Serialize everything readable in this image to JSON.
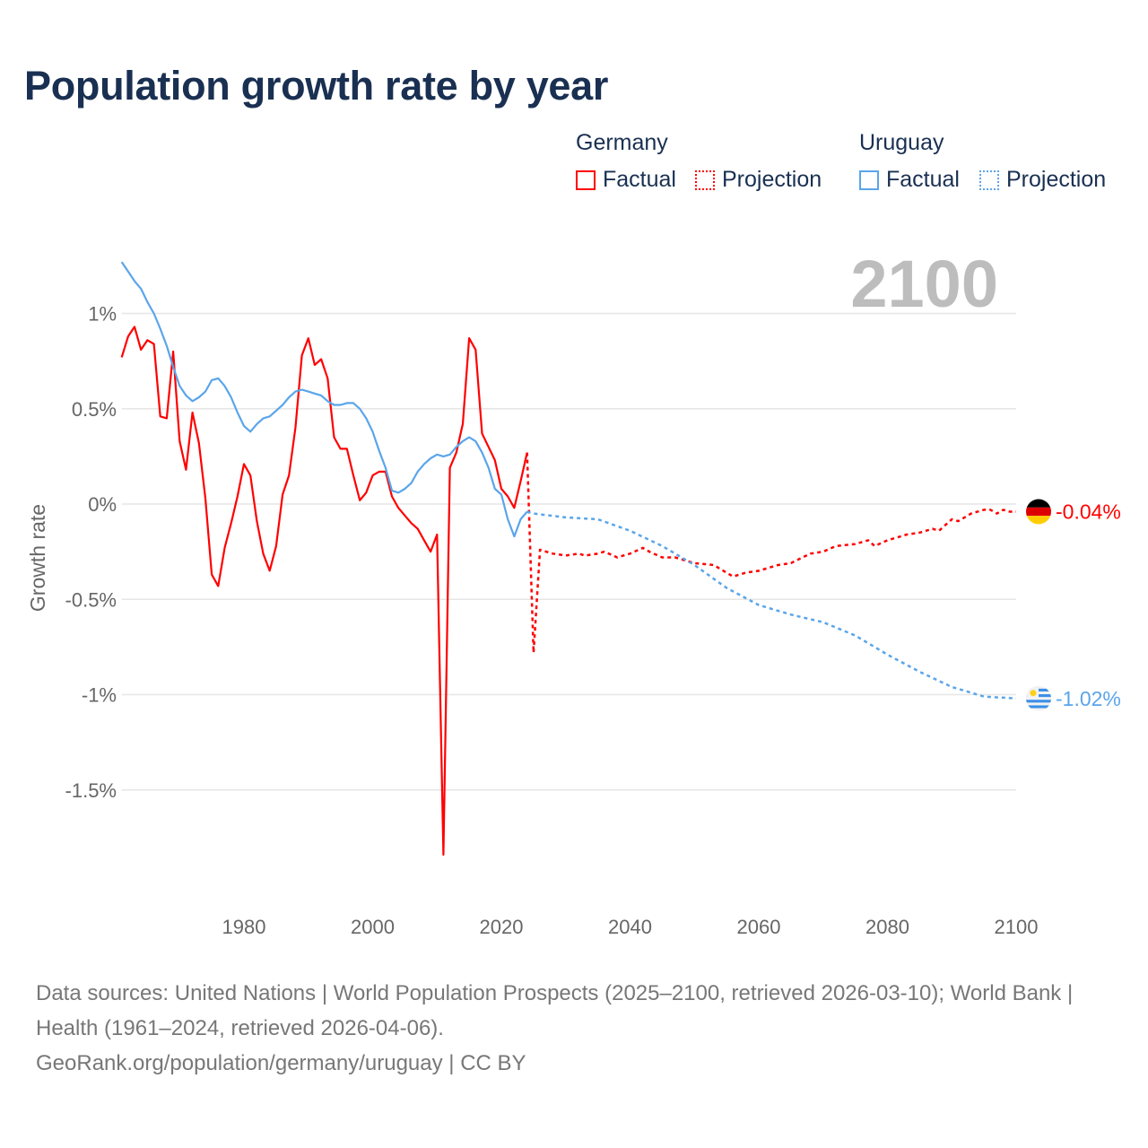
{
  "title": "Population growth rate by year",
  "legend": {
    "groups": [
      {
        "name": "Germany",
        "color": "#ff0000",
        "factual": "Factual",
        "projection": "Projection"
      },
      {
        "name": "Uruguay",
        "color": "#5aa5ea",
        "factual": "Factual",
        "projection": "Projection"
      }
    ]
  },
  "chart_data": {
    "type": "line",
    "title": "Population growth rate by year",
    "ylabel": "Growth rate",
    "xlabel": "",
    "xlim": [
      1961,
      2100
    ],
    "ylim": [
      -2.0,
      1.3
    ],
    "x_ticks": [
      1980,
      2000,
      2020,
      2040,
      2060,
      2080,
      2100
    ],
    "y_ticks": [
      {
        "value": 1,
        "label": "1%"
      },
      {
        "value": 0.5,
        "label": "0.5%"
      },
      {
        "value": 0,
        "label": "0%"
      },
      {
        "value": -0.5,
        "label": "-0.5%"
      },
      {
        "value": -1,
        "label": "-1%"
      },
      {
        "value": -1.5,
        "label": "-1.5%"
      }
    ],
    "grid": true,
    "year_label": "2100",
    "series": [
      {
        "name": "Germany Factual",
        "color": "#ff0000",
        "style": "solid",
        "start_year": 1961,
        "values": [
          0.77,
          0.88,
          0.93,
          0.81,
          0.86,
          0.84,
          0.46,
          0.45,
          0.8,
          0.33,
          0.18,
          0.48,
          0.32,
          0.03,
          -0.37,
          -0.43,
          -0.23,
          -0.1,
          0.04,
          0.21,
          0.15,
          -0.09,
          -0.26,
          -0.35,
          -0.22,
          0.05,
          0.15,
          0.4,
          0.78,
          0.87,
          0.73,
          0.76,
          0.66,
          0.35,
          0.29,
          0.29,
          0.15,
          0.02,
          0.06,
          0.15,
          0.17,
          0.17,
          0.04,
          -0.02,
          -0.06,
          -0.1,
          -0.13,
          -0.19,
          -0.25,
          -0.16,
          -1.84,
          0.19,
          0.27,
          0.42,
          0.87,
          0.81,
          0.37,
          0.3,
          0.23,
          0.08,
          0.04,
          -0.02,
          0.12,
          0.27
        ]
      },
      {
        "name": "Germany Projection",
        "color": "#ff0000",
        "style": "dotted",
        "points": [
          [
            2024,
            0.27
          ],
          [
            2025,
            -0.78
          ],
          [
            2026,
            -0.24
          ],
          [
            2028,
            -0.26
          ],
          [
            2030,
            -0.27
          ],
          [
            2032,
            -0.26
          ],
          [
            2033,
            -0.27
          ],
          [
            2035,
            -0.26
          ],
          [
            2036,
            -0.25
          ],
          [
            2038,
            -0.28
          ],
          [
            2040,
            -0.26
          ],
          [
            2042,
            -0.23
          ],
          [
            2043,
            -0.25
          ],
          [
            2045,
            -0.28
          ],
          [
            2047,
            -0.28
          ],
          [
            2050,
            -0.31
          ],
          [
            2053,
            -0.32
          ],
          [
            2056,
            -0.38
          ],
          [
            2058,
            -0.36
          ],
          [
            2060,
            -0.35
          ],
          [
            2063,
            -0.32
          ],
          [
            2065,
            -0.31
          ],
          [
            2068,
            -0.26
          ],
          [
            2070,
            -0.25
          ],
          [
            2072,
            -0.22
          ],
          [
            2075,
            -0.21
          ],
          [
            2077,
            -0.19
          ],
          [
            2078,
            -0.22
          ],
          [
            2080,
            -0.19
          ],
          [
            2083,
            -0.16
          ],
          [
            2085,
            -0.15
          ],
          [
            2087,
            -0.13
          ],
          [
            2088,
            -0.14
          ],
          [
            2090,
            -0.08
          ],
          [
            2091,
            -0.09
          ],
          [
            2093,
            -0.05
          ],
          [
            2095,
            -0.03
          ],
          [
            2096,
            -0.03
          ],
          [
            2097,
            -0.05
          ],
          [
            2098,
            -0.03
          ],
          [
            2099,
            -0.04
          ],
          [
            2100,
            -0.04
          ]
        ]
      },
      {
        "name": "Uruguay Factual",
        "color": "#5aa5ea",
        "style": "solid",
        "start_year": 1961,
        "values": [
          1.27,
          1.22,
          1.17,
          1.13,
          1.06,
          1.0,
          0.92,
          0.83,
          0.72,
          0.62,
          0.57,
          0.54,
          0.56,
          0.59,
          0.65,
          0.66,
          0.62,
          0.56,
          0.48,
          0.41,
          0.38,
          0.42,
          0.45,
          0.46,
          0.49,
          0.52,
          0.56,
          0.59,
          0.6,
          0.59,
          0.58,
          0.57,
          0.54,
          0.52,
          0.52,
          0.53,
          0.53,
          0.5,
          0.45,
          0.38,
          0.28,
          0.19,
          0.07,
          0.06,
          0.08,
          0.11,
          0.17,
          0.21,
          0.24,
          0.26,
          0.25,
          0.26,
          0.3,
          0.33,
          0.35,
          0.33,
          0.27,
          0.19,
          0.08,
          0.05,
          -0.08,
          -0.17,
          -0.08,
          -0.04
        ]
      },
      {
        "name": "Uruguay Projection",
        "color": "#5aa5ea",
        "style": "dotted",
        "points": [
          [
            2024,
            -0.04
          ],
          [
            2025,
            -0.05
          ],
          [
            2030,
            -0.07
          ],
          [
            2035,
            -0.08
          ],
          [
            2040,
            -0.14
          ],
          [
            2045,
            -0.22
          ],
          [
            2050,
            -0.32
          ],
          [
            2055,
            -0.44
          ],
          [
            2060,
            -0.53
          ],
          [
            2065,
            -0.58
          ],
          [
            2070,
            -0.62
          ],
          [
            2075,
            -0.69
          ],
          [
            2080,
            -0.79
          ],
          [
            2085,
            -0.88
          ],
          [
            2090,
            -0.96
          ],
          [
            2095,
            -1.01
          ],
          [
            2100,
            -1.02
          ]
        ]
      }
    ],
    "end_labels": [
      {
        "country": "Germany",
        "text": "-0.04%",
        "value": -0.04,
        "color": "#ff0000"
      },
      {
        "country": "Uruguay",
        "text": "-1.02%",
        "value": -1.02,
        "color": "#5aa5ea"
      }
    ]
  },
  "footer": {
    "sources": "Data sources: United Nations | World Population Prospects (2025–2100, retrieved 2026-03-10); World Bank | Health (1961–2024, retrieved 2026-04-06).",
    "link": "GeoRank.org/population/germany/uruguay | CC BY"
  }
}
